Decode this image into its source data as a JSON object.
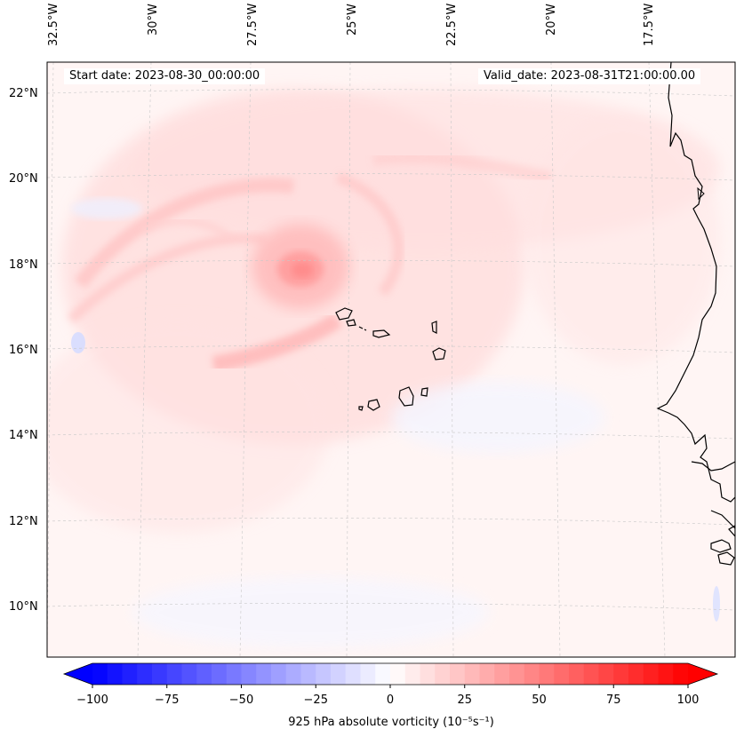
{
  "map": {
    "start_label": "Start date: 2023-08-30_00:00:00",
    "valid_label": "Valid_date: 2023-08-31T21:00:00.00",
    "lat_ticks": [
      "22°N",
      "20°N",
      "18°N",
      "16°N",
      "14°N",
      "12°N",
      "10°N"
    ],
    "lon_ticks": [
      "32.5°W",
      "30°W",
      "27.5°W",
      "25°W",
      "22.5°W",
      "20°W",
      "17.5°W"
    ],
    "region": "Eastern tropical Atlantic, Cabo Verde islands and West African coast"
  },
  "colorbar": {
    "ticks": [
      "−100",
      "−75",
      "−50",
      "−25",
      "0",
      "25",
      "50",
      "75",
      "100"
    ],
    "label": "925 hPa absolute vorticity (10⁻⁵s⁻¹)",
    "vmin": -100,
    "vmax": 100,
    "low_color": "#0000ff",
    "mid_color": "#ffffff",
    "high_color": "#ff0000"
  }
}
